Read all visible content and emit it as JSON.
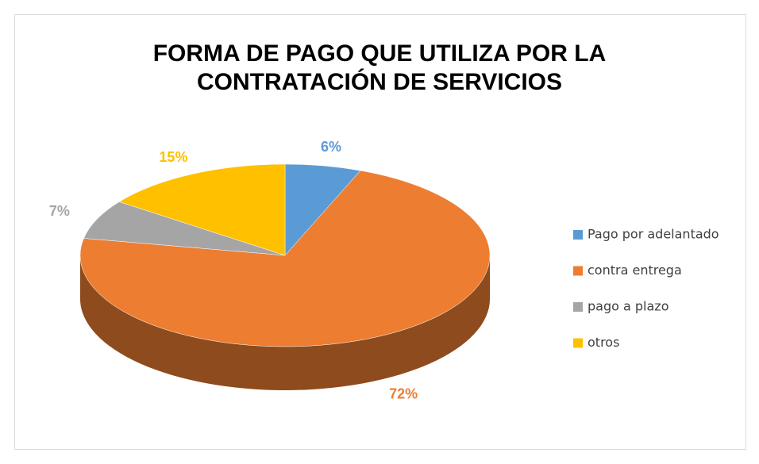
{
  "chart_data": {
    "type": "pie",
    "title": "FORMA DE PAGO QUE UTILIZA POR LA CONTRATACIÓN DE SERVICIOS",
    "categories": [
      "Pago por adelantado",
      "contra entrega",
      "pago a plazo",
      "otros"
    ],
    "values": [
      6,
      72,
      7,
      15
    ],
    "value_labels": [
      "6%",
      "72%",
      "7%",
      "15%"
    ],
    "colors": [
      "#5b9bd5",
      "#ed7d31",
      "#a5a5a5",
      "#ffc000"
    ],
    "legend": "right"
  }
}
